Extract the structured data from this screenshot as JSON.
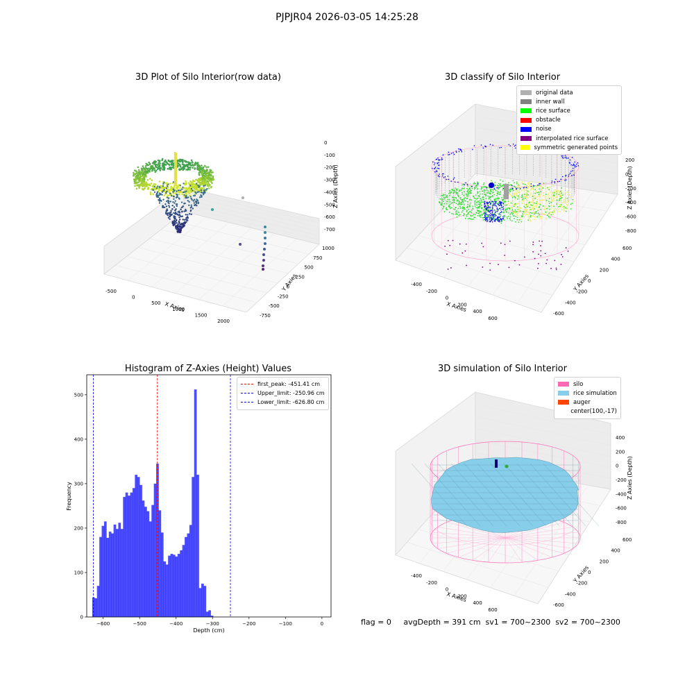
{
  "suptitle": "PJPJR04 2026-03-05 14:25:28",
  "footer": "flag = 0     avgDepth = 391 cm  sv1 = 700~2300  sv2 = 700~2300",
  "panels": {
    "raw": {
      "title": "3D Plot of Silo Interior(row data)",
      "xlabel": "X Axies",
      "ylabel": "Y Axies",
      "zlabel": "Z Axies (Depth)",
      "xticks": [
        "-500",
        "0",
        "500",
        "1000",
        "1500",
        "2000"
      ],
      "yticks": [
        "-750",
        "-500",
        "-250",
        "0",
        "250",
        "500",
        "750",
        "1000"
      ],
      "zticks": [
        "0",
        "-100",
        "-200",
        "-300",
        "-400",
        "-500",
        "-600",
        "-700"
      ]
    },
    "classify": {
      "title": "3D classify of Silo Interior",
      "xlabel": "X Axies",
      "ylabel": "Y Axies",
      "zlabel": "Z Axies (Depth)",
      "xticks": [
        "-400",
        "-200",
        "0",
        "200",
        "400",
        "600"
      ],
      "yticks": [
        "-600",
        "-400",
        "-200",
        "0",
        "200",
        "400",
        "600"
      ],
      "zticks": [
        "200",
        "0",
        "-200",
        "-400",
        "-600",
        "-800"
      ],
      "zticks_top": "0",
      "legend": [
        {
          "label": "original data",
          "color": "#b0b0b0"
        },
        {
          "label": "inner wall",
          "color": "#808080"
        },
        {
          "label": "rice surface",
          "color": "#00ff00"
        },
        {
          "label": "obstacle",
          "color": "#ff0000"
        },
        {
          "label": "noise",
          "color": "#0000ff"
        },
        {
          "label": "interpolated rice surface",
          "color": "#800080"
        },
        {
          "label": "symmetric generated points",
          "color": "#ffff00"
        }
      ]
    },
    "simulation": {
      "title": "3D simulation of Silo Interior",
      "xlabel": "X Axies",
      "ylabel": "Y Axies",
      "zlabel": "Z Axies (Depth)",
      "xticks": [
        "-400",
        "-200",
        "0",
        "200",
        "400",
        "600"
      ],
      "yticks": [
        "-600",
        "-400",
        "-200",
        "0",
        "200",
        "400",
        "600"
      ],
      "zticks": [
        "400",
        "200",
        "0",
        "-200",
        "-400",
        "-600",
        "-800"
      ],
      "legend": [
        {
          "label": "silo",
          "color": "#ff69b4"
        },
        {
          "label": "rice simulation",
          "color": "#87ceeb"
        },
        {
          "label": "auger",
          "color": "#ff4500"
        },
        {
          "label": "center(100,-17)",
          "color": ""
        }
      ]
    }
  },
  "chart_data": {
    "type": "bar",
    "title": "Histogram of Z-Axies (Height) Values",
    "xlabel": "Depth (cm)",
    "ylabel": "Frequency",
    "xlim": [
      -645,
      25
    ],
    "ylim": [
      0,
      545
    ],
    "xticks": [
      -600,
      -500,
      -400,
      -300,
      -200,
      -100,
      0
    ],
    "yticks": [
      0,
      100,
      200,
      300,
      400,
      500
    ],
    "bar_color": "#0000ff",
    "bin_start": -630,
    "bin_width": 6.5,
    "values": [
      44,
      42,
      70,
      180,
      205,
      215,
      178,
      192,
      188,
      208,
      198,
      212,
      198,
      270,
      280,
      273,
      280,
      290,
      320,
      315,
      297,
      262,
      248,
      238,
      215,
      252,
      300,
      345,
      240,
      190,
      125,
      118,
      138,
      142,
      140,
      136,
      142,
      150,
      162,
      180,
      188,
      207,
      315,
      512,
      320,
      65,
      75,
      70,
      12,
      15,
      3
    ],
    "legend_position": "upper right",
    "vlines": [
      {
        "label": "first_peak: -451.41 cm",
        "x": -451.41,
        "color": "#ff0000"
      },
      {
        "label": "Upper_limit: -250.96 cm",
        "x": -250.96,
        "color": "#0000ff"
      },
      {
        "label": "Lower_limit: -626.80 cm",
        "x": -626.8,
        "color": "#0000ff"
      }
    ]
  }
}
